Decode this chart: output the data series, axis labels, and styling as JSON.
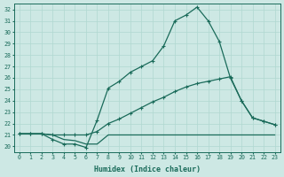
{
  "xlabel": "Humidex (Indice chaleur)",
  "bg_color": "#cde8e4",
  "line_color": "#1a6b5a",
  "grid_color": "#b0d8d0",
  "xlim": [
    -0.5,
    23.5
  ],
  "ylim": [
    19.5,
    32.5
  ],
  "xticks": [
    0,
    1,
    2,
    3,
    4,
    5,
    6,
    7,
    8,
    9,
    10,
    11,
    12,
    13,
    14,
    15,
    16,
    17,
    18,
    19,
    20,
    21,
    22,
    23
  ],
  "yticks": [
    20,
    21,
    22,
    23,
    24,
    25,
    26,
    27,
    28,
    29,
    30,
    31,
    32
  ],
  "line1_x": [
    0,
    1,
    2,
    3,
    4,
    5,
    6,
    7,
    8,
    9,
    10,
    11,
    12,
    13,
    14,
    15,
    16,
    17,
    18,
    19,
    20,
    21,
    22,
    23
  ],
  "line1_y": [
    21.1,
    21.1,
    21.1,
    21.0,
    20.6,
    20.5,
    20.2,
    20.2,
    21.0,
    21.0,
    21.0,
    21.0,
    21.0,
    21.0,
    21.0,
    21.0,
    21.0,
    21.0,
    21.0,
    21.0,
    21.0,
    21.0,
    21.0,
    21.0
  ],
  "line2_x": [
    0,
    1,
    2,
    3,
    4,
    5,
    6,
    7,
    8,
    9,
    10,
    11,
    12,
    13,
    14,
    15,
    16,
    17,
    18,
    19,
    20,
    21,
    22,
    23
  ],
  "line2_y": [
    21.1,
    21.1,
    21.1,
    21.0,
    21.0,
    21.0,
    21.0,
    21.3,
    22.0,
    22.4,
    22.9,
    23.4,
    23.9,
    24.3,
    24.8,
    25.2,
    25.5,
    25.7,
    25.9,
    26.1,
    24.0,
    22.5,
    22.2,
    21.9
  ],
  "line3_x": [
    0,
    1,
    2,
    3,
    4,
    5,
    6,
    7,
    8,
    9,
    10,
    11,
    12,
    13,
    14,
    15,
    16,
    17,
    18,
    19,
    20,
    21,
    22,
    23
  ],
  "line3_y": [
    21.1,
    21.1,
    21.1,
    20.6,
    20.2,
    20.2,
    19.9,
    22.3,
    25.1,
    25.7,
    26.5,
    27.0,
    27.5,
    28.8,
    31.0,
    31.5,
    32.2,
    31.0,
    29.2,
    26.0,
    24.0,
    22.5,
    22.2,
    21.9
  ],
  "marker": "+",
  "markersize": 3.5,
  "linewidth": 0.9
}
